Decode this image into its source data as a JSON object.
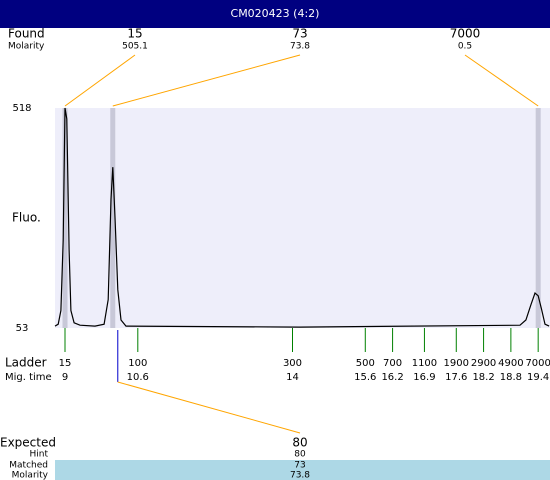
{
  "header": {
    "title": "CM020423 (4:2)"
  },
  "chart_data": {
    "type": "line",
    "ylabel": "Fluo.",
    "ylim": [
      53,
      518
    ],
    "yticks": [
      53,
      518
    ],
    "xlim": [
      8.78,
      19.66
    ],
    "series": [
      {
        "color": "#000000",
        "x": [
          8.78,
          8.85,
          8.91,
          8.96,
          9.0,
          9.04,
          9.09,
          9.13,
          9.2,
          9.33,
          9.66,
          9.86,
          9.95,
          10.01,
          10.05,
          10.1,
          10.16,
          10.23,
          10.34,
          14.16,
          19.0,
          19.13,
          19.24,
          19.33,
          19.4,
          19.47,
          19.55,
          19.64
        ],
        "values": [
          57,
          61,
          90,
          240,
          518,
          495,
          218,
          90,
          64,
          59,
          57,
          61,
          113,
          325,
          393,
          282,
          134,
          70,
          57,
          55,
          59,
          70,
          102,
          127,
          121,
          94,
          61,
          57
        ]
      }
    ],
    "found": {
      "label": "Found",
      "molarity_label": "Molarity",
      "peaks": [
        {
          "size": 15,
          "molarity": 505.1,
          "migration_time": 9.0
        },
        {
          "size": 73,
          "molarity": 73.8,
          "migration_time": 10.05
        },
        {
          "size": 7000,
          "molarity": 0.5,
          "migration_time": 19.4
        }
      ]
    },
    "ladder": {
      "label": "Ladder",
      "time_label": "Mig. time",
      "sizes": [
        15,
        100,
        300,
        500,
        700,
        1100,
        1900,
        2900,
        4900,
        7000
      ],
      "times": [
        9,
        10.6,
        14,
        15.6,
        16.2,
        16.9,
        17.6,
        18.2,
        18.8,
        19.4
      ]
    },
    "expected": {
      "label": "Expected",
      "value": 80,
      "migration_time": 10.16,
      "hint_label": "Hint",
      "hint": 80,
      "matched_label": "Matched",
      "matched": 73,
      "molarity_label": "Molarity",
      "molarity": 73.8
    }
  }
}
